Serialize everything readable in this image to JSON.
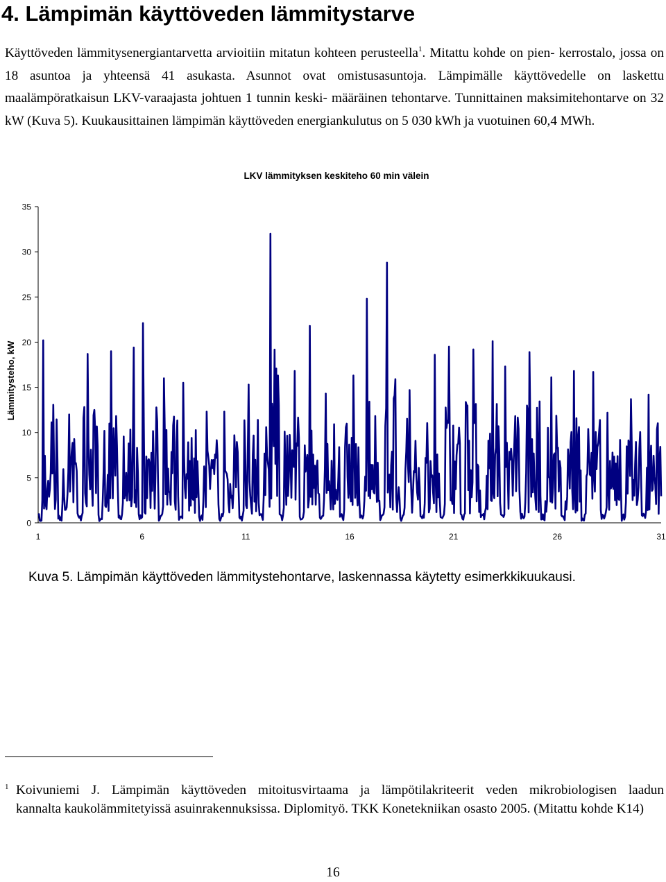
{
  "heading": "4. Lämpimän käyttöveden lämmitystarve",
  "paragraph": {
    "part1": "Käyttöveden lämmitysenergiantarvetta arvioitiin mitatun kohteen perusteella",
    "footnote_ref": "1",
    "part2": ". Mitattu kohde on pien- kerrostalo, jossa on 18 asuntoa ja yhteensä 41 asukasta. Asunnot ovat omistusasuntoja. Lämpimälle käyttövedelle on laskettu maalämpöratkaisun LKV-varaajasta johtuen 1 tunnin keski- määräinen tehontarve. Tunnittainen maksimitehontarve on 32 kW (Kuva 5). Kuukausittainen lämpimän käyttöveden energiankulutus on 5 030 kWh ja vuotuinen 60,4 MWh."
  },
  "chart_data": {
    "type": "line",
    "title": "LKV lämmityksen keskiteho 60 min välein",
    "ylabel": "Lämmitysteho, kW",
    "xlabel": "",
    "ylim": [
      0,
      35
    ],
    "xlim": [
      1,
      31
    ],
    "yticks": [
      "0",
      "5",
      "10",
      "15",
      "20",
      "25",
      "30",
      "35"
    ],
    "xticks": [
      "1",
      "6",
      "11",
      "16",
      "21",
      "26",
      "31"
    ],
    "grid": false,
    "legend": "none",
    "line_color": "#000080",
    "sampling": "hourly average power, kW",
    "daily_peaks": [
      {
        "day": 1,
        "peak": 20.2
      },
      {
        "day": 2,
        "peak": 12.0
      },
      {
        "day": 3,
        "peak": 18.7
      },
      {
        "day": 4,
        "peak": 19.0
      },
      {
        "day": 5,
        "peak": 19.4
      },
      {
        "day": 6,
        "peak": 22.1
      },
      {
        "day": 7,
        "peak": 16.0
      },
      {
        "day": 8,
        "peak": 15.5
      },
      {
        "day": 9,
        "peak": 12.3
      },
      {
        "day": 10,
        "peak": 12.3
      },
      {
        "day": 11,
        "peak": 15.3
      },
      {
        "day": 12,
        "peak": 32.0
      },
      {
        "day": 13,
        "peak": 16.8
      },
      {
        "day": 14,
        "peak": 21.8
      },
      {
        "day": 15,
        "peak": 14.3
      },
      {
        "day": 16,
        "peak": 16.3
      },
      {
        "day": 17,
        "peak": 24.8
      },
      {
        "day": 18,
        "peak": 28.8
      },
      {
        "day": 19,
        "peak": 14.7
      },
      {
        "day": 20,
        "peak": 18.6
      },
      {
        "day": 21,
        "peak": 19.5
      },
      {
        "day": 22,
        "peak": 19.2
      },
      {
        "day": 23,
        "peak": 20.1
      },
      {
        "day": 24,
        "peak": 17.3
      },
      {
        "day": 25,
        "peak": 18.9
      },
      {
        "day": 26,
        "peak": 16.1
      },
      {
        "day": 27,
        "peak": 16.8
      },
      {
        "day": 28,
        "peak": 16.7
      },
      {
        "day": 29,
        "peak": 12.2
      },
      {
        "day": 30,
        "peak": 13.7
      },
      {
        "day": 31,
        "peak": 14.2
      }
    ]
  },
  "caption": "Kuva 5. Lämpimän käyttöveden lämmitystehontarve, laskennassa käytetty esimerkkikuukausi.",
  "footnote": {
    "mark": "1",
    "line1": "Koivuniemi J. Lämpimän käyttöveden mitoitusvirtaama ja lämpötilakriteerit veden mikrobiologisen laadun",
    "line2": "kannalta kaukolämmitetyissä asuinrakennuksissa. Diplomityö. TKK Konetekniikan osasto 2005. (Mitattu kohde K14)"
  },
  "page_number": "16"
}
